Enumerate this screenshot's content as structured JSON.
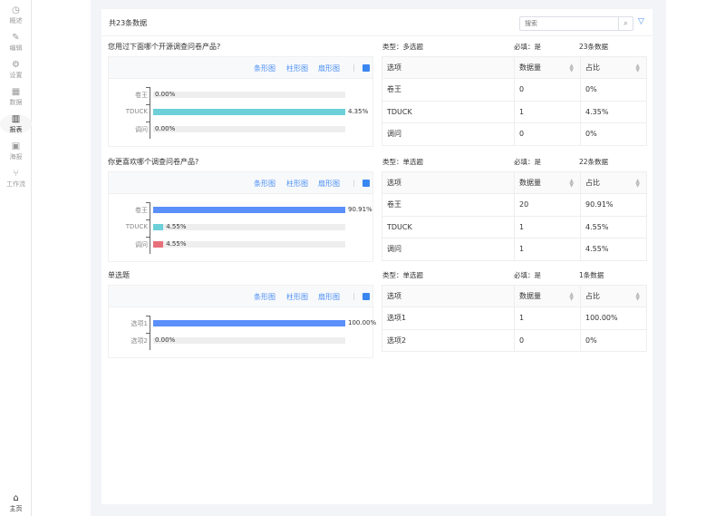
{
  "sidebar": {
    "items": [
      {
        "label": "概述",
        "icon": "dashboard-icon",
        "glyph": "◷",
        "active": false
      },
      {
        "label": "编辑",
        "icon": "pencil-icon",
        "glyph": "✎",
        "active": false
      },
      {
        "label": "设置",
        "icon": "gear-icon",
        "glyph": "⚙",
        "active": false
      },
      {
        "label": "数据",
        "icon": "table-icon",
        "glyph": "▦",
        "active": false
      },
      {
        "label": "报表",
        "icon": "bar-chart-icon",
        "glyph": "▥",
        "active": true
      },
      {
        "label": "海报",
        "icon": "image-icon",
        "glyph": "▣",
        "active": false
      },
      {
        "label": "工作流",
        "icon": "branch-icon",
        "glyph": "⑂",
        "active": false
      }
    ],
    "home": {
      "label": "主页",
      "icon": "home-icon",
      "glyph": "⌂"
    }
  },
  "header": {
    "total": "共23条数据",
    "search_placeholder": "搜索",
    "search_icon": "search-icon",
    "filter_icon": "filter-icon"
  },
  "toolbar": {
    "bar": "条形图",
    "column": "柱形图",
    "pie": "扇形图",
    "sep": "|"
  },
  "table_headers": {
    "option": "选项",
    "count": "数据量",
    "ratio": "占比"
  },
  "colors": {
    "accent": "#4a8ff5",
    "series": [
      "#5b8ff9",
      "#6dcfd8",
      "#e8707a"
    ]
  },
  "sections": [
    {
      "title": "您用过下面哪个开源调查问卷产品?",
      "type": "类型：多选题",
      "required": "必填：是",
      "count": "23条数据",
      "rows": [
        {
          "option": "卷王",
          "count": "0",
          "ratio": "0%",
          "pct": 0,
          "label": "0.00%"
        },
        {
          "option": "TDUCK",
          "count": "1",
          "ratio": "4.35%",
          "pct": 4.35,
          "label": "4.35%"
        },
        {
          "option": "调问",
          "count": "0",
          "ratio": "0%",
          "pct": 0,
          "label": "0.00%"
        }
      ]
    },
    {
      "title": "你更喜欢哪个调查问卷产品?",
      "type": "类型：单选题",
      "required": "必填：是",
      "count": "22条数据",
      "rows": [
        {
          "option": "卷王",
          "count": "20",
          "ratio": "90.91%",
          "pct": 90.91,
          "label": "90.91%"
        },
        {
          "option": "TDUCK",
          "count": "1",
          "ratio": "4.55%",
          "pct": 4.55,
          "label": "4.55%"
        },
        {
          "option": "调问",
          "count": "1",
          "ratio": "4.55%",
          "pct": 4.55,
          "label": "4.55%"
        }
      ]
    },
    {
      "title": "单选题",
      "type": "类型：单选题",
      "required": "必填：是",
      "count": "1条数据",
      "rows": [
        {
          "option": "选项1",
          "count": "1",
          "ratio": "100.00%",
          "pct": 100,
          "label": "100.00%"
        },
        {
          "option": "选项2",
          "count": "0",
          "ratio": "0%",
          "pct": 0,
          "label": "0.00%"
        }
      ]
    }
  ]
}
